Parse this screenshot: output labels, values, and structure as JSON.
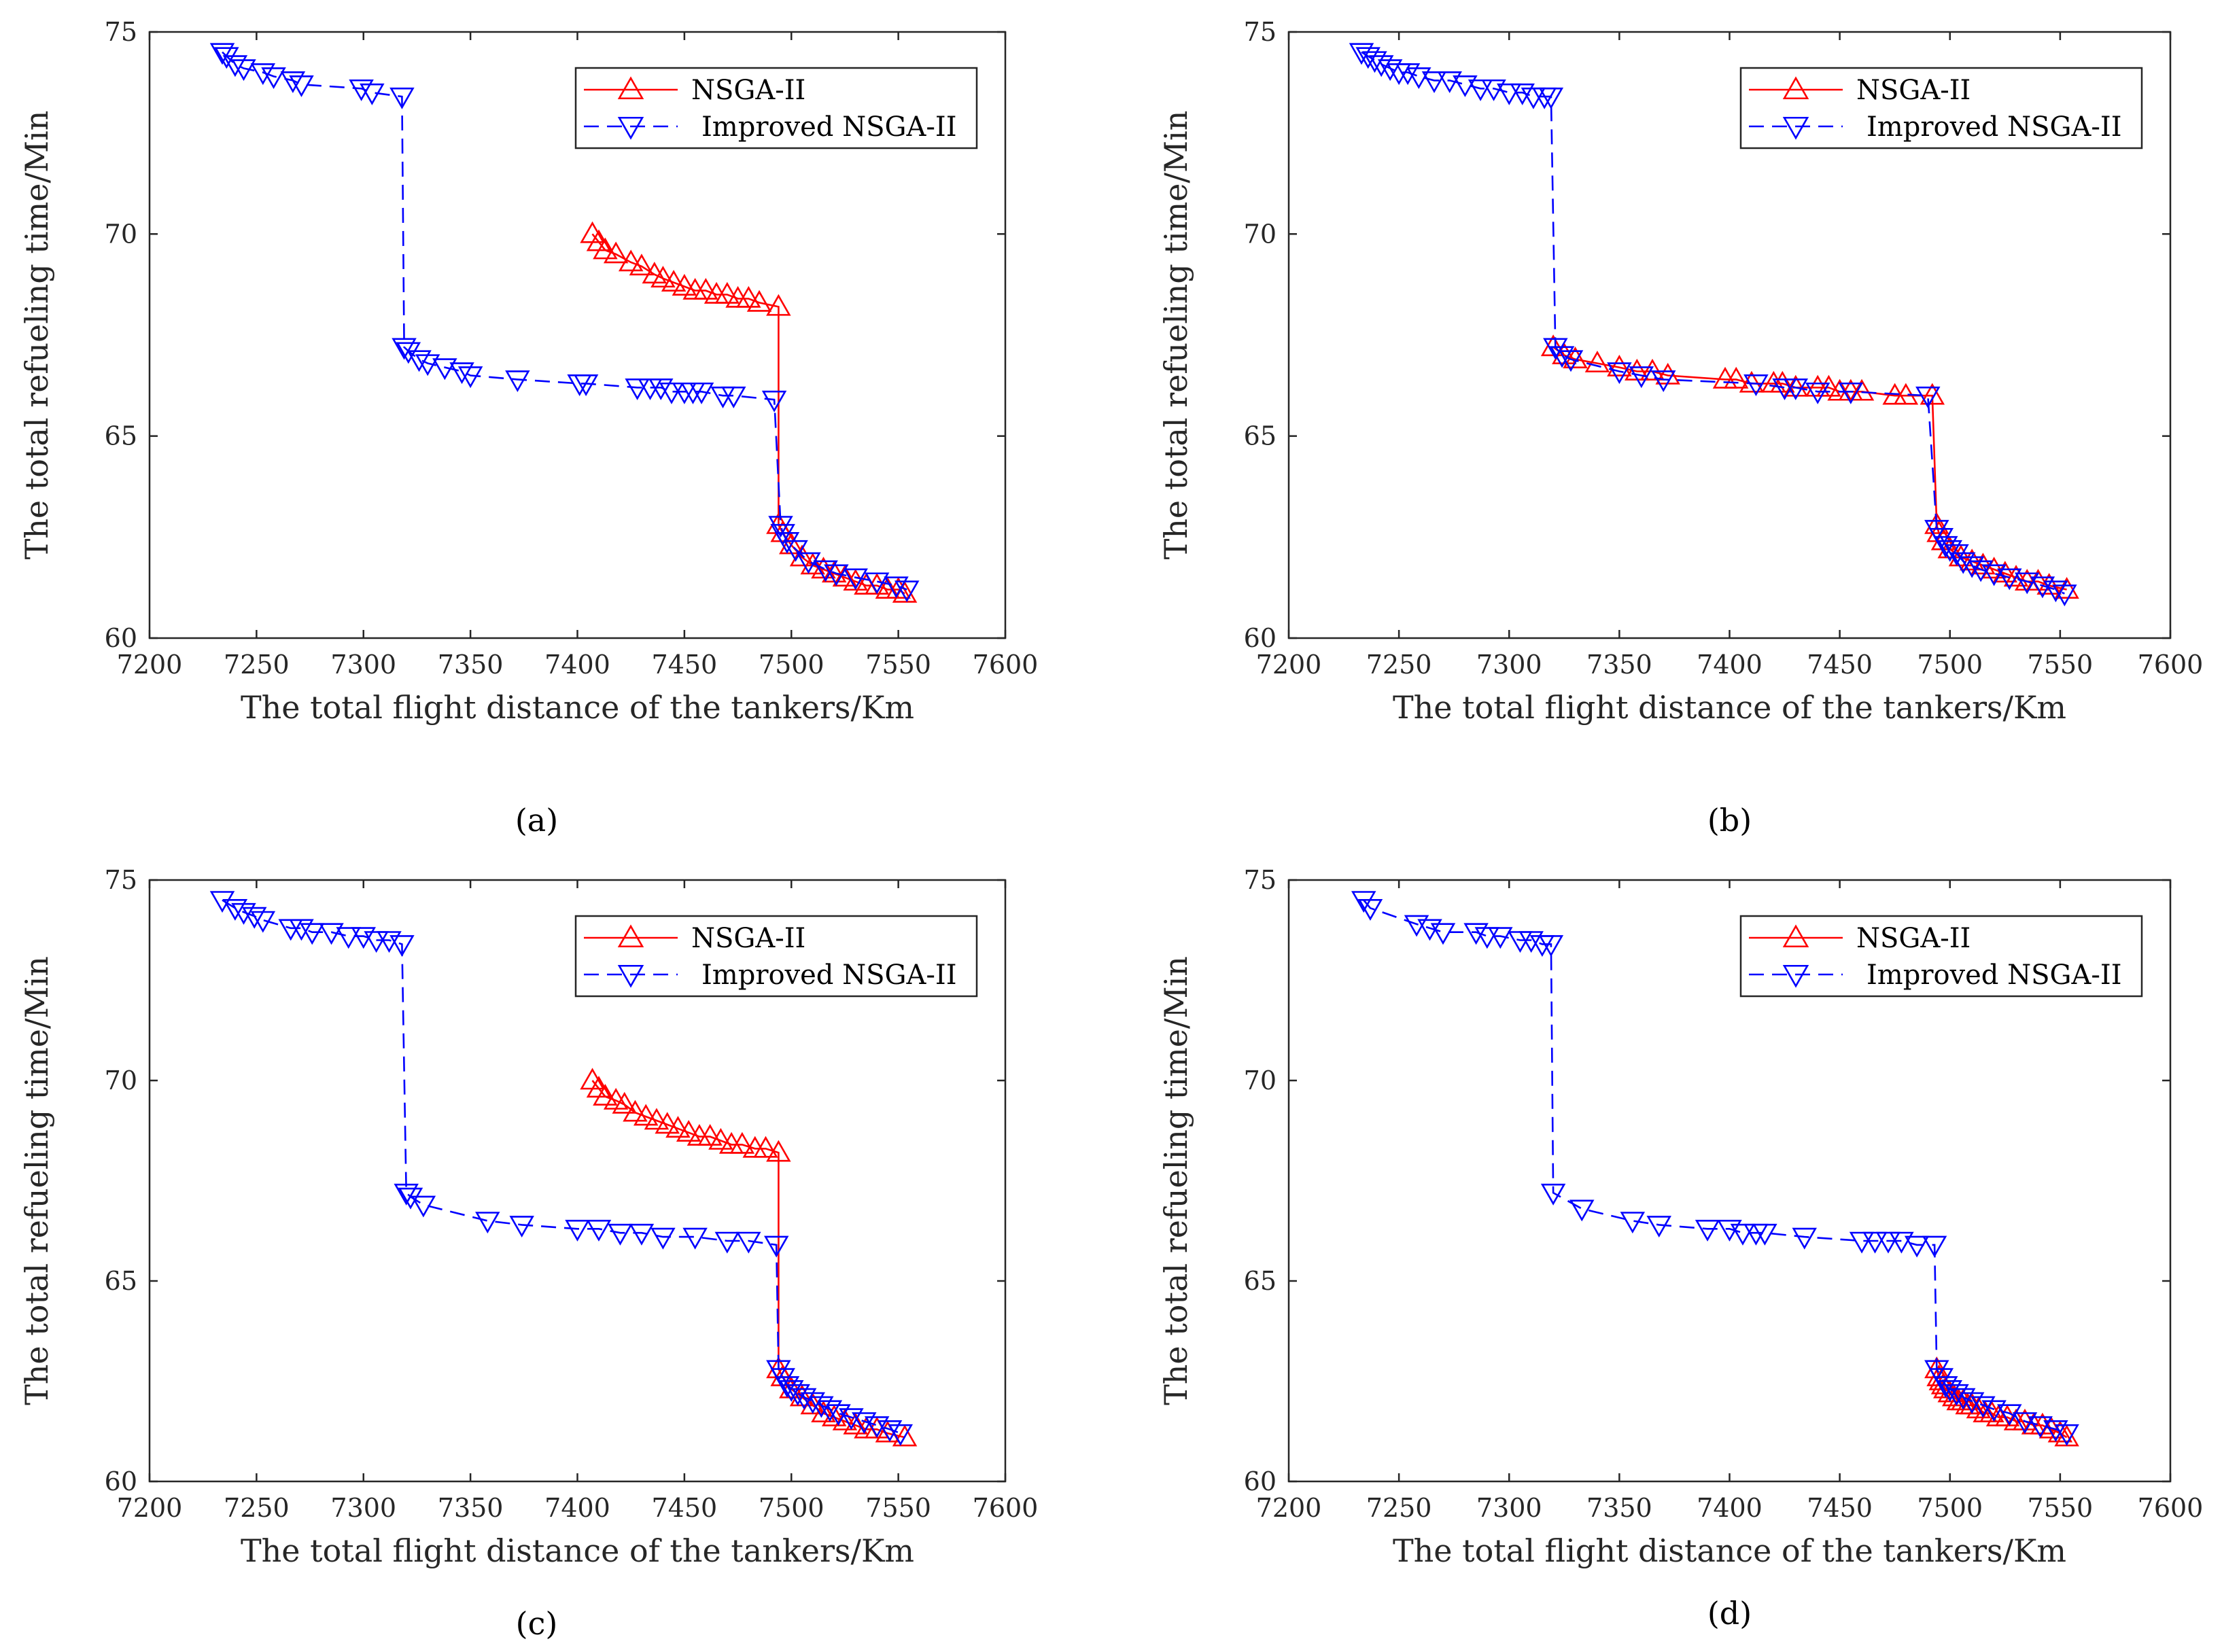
{
  "chart_data": [
    {
      "type": "line",
      "caption": "(a)",
      "xlabel": "The total flight distance of the tankers/Km",
      "ylabel": "The total refueling time/Min",
      "xlim": [
        7200,
        7600
      ],
      "ylim": [
        60,
        75
      ],
      "xticks": [
        "7200",
        "7250",
        "7300",
        "7350",
        "7400",
        "7450",
        "7500",
        "7550",
        "7600"
      ],
      "yticks": [
        "60",
        "65",
        "70",
        "75"
      ],
      "legend_position": "top-right",
      "series": [
        {
          "name": "NSGA-II",
          "color": "#ff0000",
          "marker": "triangle-up",
          "style": "solid",
          "x": [
            7407,
            7410,
            7413,
            7418,
            7425,
            7430,
            7436,
            7440,
            7445,
            7450,
            7455,
            7460,
            7465,
            7470,
            7475,
            7480,
            7485,
            7494,
            7494,
            7496,
            7500,
            7505,
            7510,
            7515,
            7520,
            7525,
            7530,
            7535,
            7540,
            7545,
            7550,
            7553
          ],
          "y": [
            70.0,
            69.8,
            69.6,
            69.5,
            69.3,
            69.2,
            69.0,
            68.9,
            68.8,
            68.7,
            68.6,
            68.6,
            68.5,
            68.5,
            68.4,
            68.4,
            68.3,
            68.2,
            62.8,
            62.6,
            62.3,
            62.0,
            61.8,
            61.7,
            61.6,
            61.5,
            61.4,
            61.3,
            61.3,
            61.2,
            61.2,
            61.1
          ]
        },
        {
          "name": "Improved NSGA-II",
          "color": "#0000ff",
          "marker": "triangle-down",
          "style": "dashed",
          "x": [
            7234,
            7236,
            7240,
            7244,
            7253,
            7258,
            7267,
            7271,
            7299,
            7304,
            7318,
            7319,
            7321,
            7326,
            7330,
            7338,
            7346,
            7350,
            7372,
            7401,
            7404,
            7428,
            7434,
            7439,
            7444,
            7450,
            7454,
            7458,
            7468,
            7473,
            7492,
            7495,
            7496,
            7498,
            7502,
            7508,
            7516,
            7521,
            7530,
            7540,
            7549,
            7554
          ],
          "y": [
            74.5,
            74.4,
            74.2,
            74.1,
            74.0,
            73.9,
            73.8,
            73.7,
            73.6,
            73.5,
            73.4,
            67.2,
            67.1,
            66.9,
            66.8,
            66.7,
            66.6,
            66.5,
            66.4,
            66.3,
            66.3,
            66.2,
            66.2,
            66.2,
            66.1,
            66.1,
            66.1,
            66.1,
            66.0,
            66.0,
            65.9,
            62.8,
            62.6,
            62.4,
            62.2,
            61.9,
            61.7,
            61.6,
            61.5,
            61.4,
            61.3,
            61.2
          ]
        }
      ]
    },
    {
      "type": "line",
      "caption": "(b)",
      "xlabel": "The total flight distance of the tankers/Km",
      "ylabel": "The total refueling time/Min",
      "xlim": [
        7200,
        7600
      ],
      "ylim": [
        60,
        75
      ],
      "xticks": [
        "7200",
        "7250",
        "7300",
        "7350",
        "7400",
        "7450",
        "7500",
        "7550",
        "7600"
      ],
      "yticks": [
        "60",
        "65",
        "70",
        "75"
      ],
      "legend_position": "top-right",
      "series": [
        {
          "name": "NSGA-II",
          "color": "#ff0000",
          "marker": "triangle-up",
          "style": "solid",
          "x": [
            7320,
            7325,
            7330,
            7340,
            7350,
            7358,
            7365,
            7372,
            7398,
            7403,
            7410,
            7420,
            7424,
            7430,
            7440,
            7445,
            7450,
            7455,
            7460,
            7475,
            7480,
            7492,
            7494,
            7495,
            7497,
            7500,
            7505,
            7510,
            7515,
            7520,
            7525,
            7530,
            7535,
            7540,
            7545,
            7553
          ],
          "y": [
            67.2,
            67.0,
            66.9,
            66.8,
            66.7,
            66.6,
            66.6,
            66.5,
            66.4,
            66.4,
            66.3,
            66.3,
            66.3,
            66.2,
            66.2,
            66.2,
            66.1,
            66.1,
            66.1,
            66.0,
            66.0,
            66.0,
            62.8,
            62.6,
            62.4,
            62.2,
            62.0,
            61.9,
            61.8,
            61.7,
            61.6,
            61.5,
            61.4,
            61.4,
            61.3,
            61.2
          ]
        },
        {
          "name": "Improved NSGA-II",
          "color": "#0000ff",
          "marker": "triangle-down",
          "style": "dashed",
          "x": [
            7233,
            7236,
            7239,
            7242,
            7246,
            7250,
            7254,
            7259,
            7266,
            7273,
            7280,
            7287,
            7293,
            7300,
            7306,
            7311,
            7316,
            7319,
            7321,
            7324,
            7328,
            7350,
            7360,
            7370,
            7412,
            7425,
            7430,
            7440,
            7455,
            7490,
            7494,
            7496,
            7498,
            7500,
            7503,
            7506,
            7510,
            7514,
            7520,
            7527,
            7535,
            7542,
            7548,
            7552
          ],
          "y": [
            74.5,
            74.4,
            74.3,
            74.2,
            74.1,
            74.0,
            74.0,
            73.9,
            73.8,
            73.8,
            73.7,
            73.6,
            73.6,
            73.5,
            73.5,
            73.4,
            73.4,
            73.4,
            67.2,
            67.0,
            66.9,
            66.6,
            66.5,
            66.4,
            66.3,
            66.2,
            66.2,
            66.1,
            66.1,
            66.0,
            62.7,
            62.5,
            62.3,
            62.2,
            62.1,
            61.9,
            61.8,
            61.7,
            61.6,
            61.5,
            61.4,
            61.3,
            61.2,
            61.1
          ]
        }
      ]
    },
    {
      "type": "line",
      "caption": "(c)",
      "xlabel": "The total flight distance of the tankers/Km",
      "ylabel": "The total refueling time/Min",
      "xlim": [
        7200,
        7600
      ],
      "ylim": [
        60,
        75
      ],
      "xticks": [
        "7200",
        "7250",
        "7300",
        "7350",
        "7400",
        "7450",
        "7500",
        "7550",
        "7600"
      ],
      "yticks": [
        "60",
        "65",
        "70",
        "75"
      ],
      "legend_position": "top-right",
      "series": [
        {
          "name": "NSGA-II",
          "color": "#ff0000",
          "marker": "triangle-up",
          "style": "solid",
          "x": [
            7407,
            7410,
            7413,
            7418,
            7422,
            7427,
            7432,
            7437,
            7442,
            7447,
            7452,
            7457,
            7462,
            7467,
            7472,
            7477,
            7483,
            7488,
            7494,
            7494,
            7496,
            7500,
            7505,
            7510,
            7515,
            7520,
            7525,
            7530,
            7535,
            7540,
            7545,
            7553
          ],
          "y": [
            70.0,
            69.8,
            69.6,
            69.5,
            69.4,
            69.2,
            69.1,
            69.0,
            68.9,
            68.8,
            68.7,
            68.6,
            68.6,
            68.5,
            68.4,
            68.4,
            68.3,
            68.3,
            68.2,
            62.8,
            62.6,
            62.3,
            62.1,
            61.9,
            61.7,
            61.6,
            61.5,
            61.4,
            61.3,
            61.3,
            61.2,
            61.1
          ]
        },
        {
          "name": "Improved NSGA-II",
          "color": "#0000ff",
          "marker": "triangle-down",
          "style": "dashed",
          "x": [
            7234,
            7240,
            7244,
            7249,
            7253,
            7266,
            7271,
            7276,
            7285,
            7293,
            7300,
            7306,
            7312,
            7318,
            7320,
            7322,
            7328,
            7358,
            7374,
            7400,
            7410,
            7420,
            7430,
            7440,
            7455,
            7470,
            7480,
            7493,
            7494,
            7496,
            7498,
            7500,
            7503,
            7506,
            7510,
            7514,
            7518,
            7522,
            7528,
            7534,
            7540,
            7546,
            7551
          ],
          "y": [
            74.5,
            74.3,
            74.2,
            74.1,
            74.0,
            73.8,
            73.8,
            73.7,
            73.7,
            73.6,
            73.6,
            73.5,
            73.5,
            73.4,
            67.2,
            67.1,
            66.9,
            66.5,
            66.4,
            66.3,
            66.3,
            66.2,
            66.2,
            66.1,
            66.1,
            66.0,
            66.0,
            65.9,
            62.8,
            62.6,
            62.4,
            62.3,
            62.2,
            62.1,
            62.0,
            61.9,
            61.8,
            61.7,
            61.6,
            61.5,
            61.4,
            61.3,
            61.2
          ]
        }
      ]
    },
    {
      "type": "line",
      "caption": "(d)",
      "xlabel": "The total flight distance of the tankers/Km",
      "ylabel": "The total refueling time/Min",
      "xlim": [
        7200,
        7600
      ],
      "ylim": [
        60,
        75
      ],
      "xticks": [
        "7200",
        "7250",
        "7300",
        "7350",
        "7400",
        "7450",
        "7500",
        "7550",
        "7600"
      ],
      "yticks": [
        "60",
        "65",
        "70",
        "75"
      ],
      "legend_position": "top-right",
      "series": [
        {
          "name": "NSGA-II",
          "color": "#ff0000",
          "marker": "triangle-up",
          "style": "solid",
          "x": [
            7494,
            7495,
            7496,
            7497,
            7498,
            7500,
            7502,
            7504,
            7506,
            7508,
            7510,
            7513,
            7516,
            7519,
            7522,
            7526,
            7530,
            7534,
            7538,
            7542,
            7546,
            7550,
            7553
          ],
          "y": [
            62.8,
            62.6,
            62.5,
            62.4,
            62.3,
            62.2,
            62.1,
            62.0,
            62.0,
            61.9,
            61.9,
            61.8,
            61.7,
            61.7,
            61.6,
            61.6,
            61.5,
            61.5,
            61.4,
            61.4,
            61.3,
            61.2,
            61.1
          ]
        },
        {
          "name": "Improved NSGA-II",
          "color": "#0000ff",
          "marker": "triangle-down",
          "style": "dashed",
          "x": [
            7234,
            7237,
            7258,
            7264,
            7270,
            7285,
            7290,
            7296,
            7305,
            7310,
            7315,
            7319,
            7320,
            7333,
            7356,
            7368,
            7390,
            7400,
            7406,
            7412,
            7416,
            7434,
            7460,
            7466,
            7472,
            7478,
            7485,
            7493,
            7494,
            7496,
            7498,
            7500,
            7503,
            7506,
            7510,
            7515,
            7520,
            7527,
            7534,
            7541,
            7548,
            7553
          ],
          "y": [
            74.5,
            74.3,
            73.9,
            73.8,
            73.7,
            73.7,
            73.6,
            73.6,
            73.5,
            73.5,
            73.4,
            73.4,
            67.2,
            66.8,
            66.5,
            66.4,
            66.3,
            66.3,
            66.2,
            66.2,
            66.2,
            66.1,
            66.0,
            66.0,
            66.0,
            66.0,
            65.9,
            65.9,
            62.8,
            62.6,
            62.4,
            62.3,
            62.2,
            62.1,
            62.0,
            61.9,
            61.8,
            61.7,
            61.5,
            61.4,
            61.3,
            61.2
          ]
        }
      ]
    }
  ]
}
